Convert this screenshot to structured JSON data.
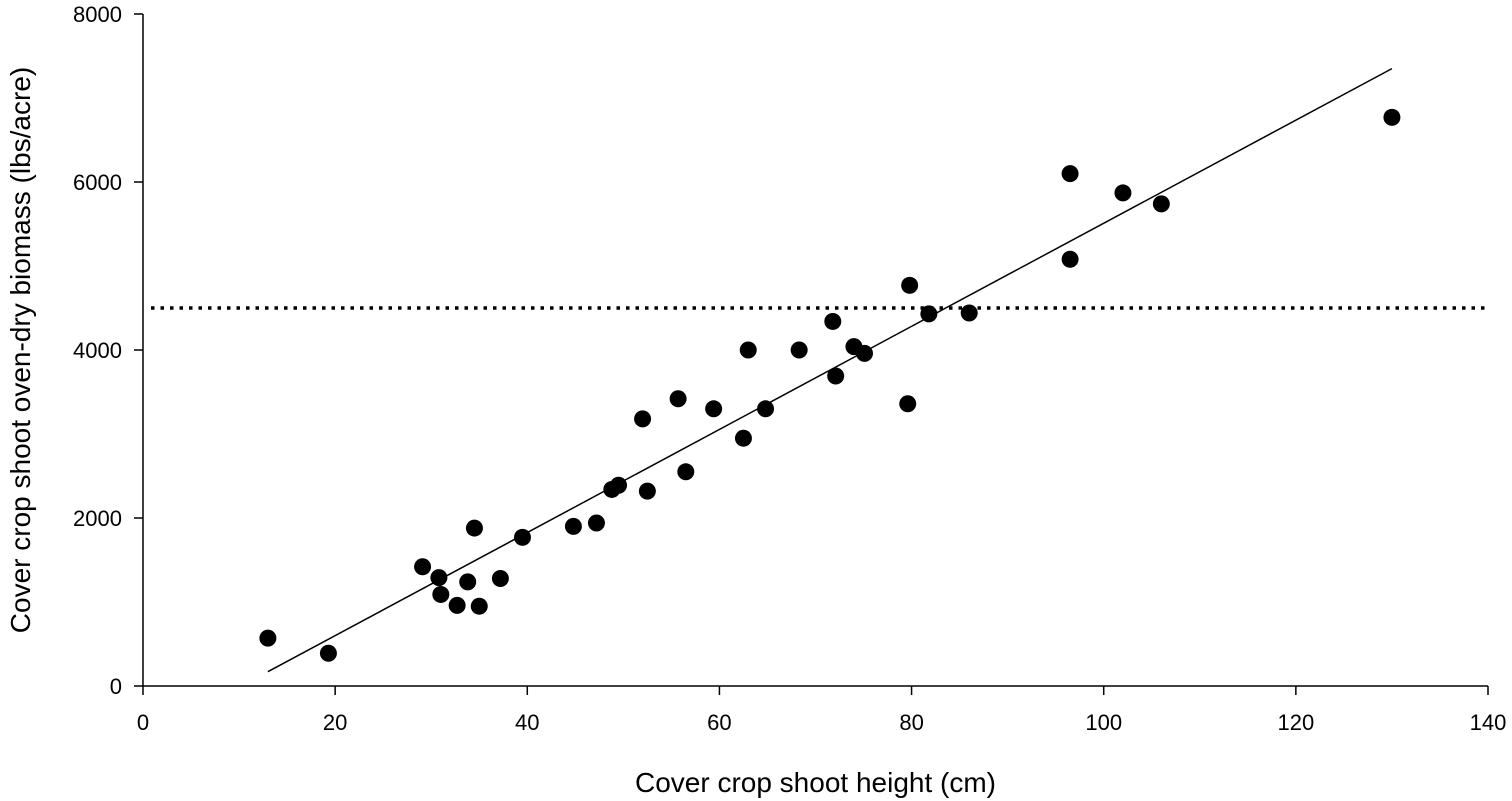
{
  "chart_data": {
    "type": "scatter",
    "title": "",
    "xlabel": "Cover crop shoot height (cm)",
    "ylabel": "Cover crop shoot oven-dry biomass (lbs/acre)",
    "xlim": [
      0,
      140
    ],
    "ylim": [
      0,
      8000
    ],
    "xticks": [
      0,
      20,
      40,
      60,
      80,
      100,
      120,
      140
    ],
    "yticks": [
      0,
      2000,
      4000,
      6000,
      8000
    ],
    "grid": false,
    "legend": "none",
    "marker_color": "#000000",
    "series": [
      {
        "points": [
          [
            13.0,
            570
          ],
          [
            19.3,
            390
          ],
          [
            29.1,
            1420
          ],
          [
            30.8,
            1290
          ],
          [
            31.0,
            1090
          ],
          [
            32.7,
            960
          ],
          [
            33.8,
            1240
          ],
          [
            34.5,
            1880
          ],
          [
            35.0,
            950
          ],
          [
            37.2,
            1280
          ],
          [
            39.5,
            1770
          ],
          [
            44.8,
            1900
          ],
          [
            47.2,
            1940
          ],
          [
            48.8,
            2340
          ],
          [
            49.5,
            2390
          ],
          [
            52.0,
            3180
          ],
          [
            52.5,
            2320
          ],
          [
            55.7,
            3420
          ],
          [
            56.5,
            2550
          ],
          [
            59.4,
            3300
          ],
          [
            62.5,
            2950
          ],
          [
            63.0,
            4000
          ],
          [
            64.8,
            3300
          ],
          [
            68.3,
            4000
          ],
          [
            71.8,
            4340
          ],
          [
            72.1,
            3690
          ],
          [
            74.0,
            4040
          ],
          [
            75.1,
            3960
          ],
          [
            79.6,
            3360
          ],
          [
            79.8,
            4770
          ],
          [
            81.8,
            4430
          ],
          [
            86.0,
            4440
          ],
          [
            96.5,
            6100
          ],
          [
            96.5,
            5080
          ],
          [
            102.0,
            5870
          ],
          [
            106.0,
            5740
          ],
          [
            130.0,
            6770
          ]
        ]
      }
    ],
    "regression_line": {
      "x": [
        13.0,
        130.0
      ],
      "y": [
        170,
        7350
      ],
      "style": "solid"
    },
    "threshold_line": {
      "y": 4500,
      "style": "dotted"
    }
  }
}
